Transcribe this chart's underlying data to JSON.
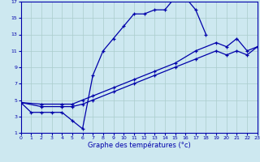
{
  "xlabel": "Graphe des températures (°c)",
  "bg_color": "#cde8f0",
  "line_color": "#0000aa",
  "grid_color": "#aacccc",
  "xlim": [
    0,
    23
  ],
  "ylim": [
    1,
    17
  ],
  "xticks": [
    0,
    1,
    2,
    3,
    4,
    5,
    6,
    7,
    8,
    9,
    10,
    11,
    12,
    13,
    14,
    15,
    16,
    17,
    18,
    19,
    20,
    21,
    22,
    23
  ],
  "yticks": [
    1,
    3,
    5,
    7,
    9,
    11,
    13,
    15,
    17
  ],
  "line1_x": [
    0,
    1,
    2,
    3,
    4,
    5,
    6,
    7,
    8,
    9,
    10,
    11,
    12,
    13,
    14,
    15,
    16,
    17,
    18
  ],
  "line1_y": [
    4.7,
    3.5,
    3.5,
    3.5,
    3.5,
    2.5,
    1.5,
    8.0,
    11.0,
    12.5,
    14.0,
    15.5,
    15.5,
    16.0,
    16.0,
    17.5,
    17.5,
    16.0,
    13.0
  ],
  "line2_x": [
    0,
    2,
    4,
    5,
    6,
    7,
    9,
    11,
    13,
    15,
    17,
    19,
    20,
    21,
    22,
    23
  ],
  "line2_y": [
    4.7,
    4.5,
    4.5,
    4.5,
    5.0,
    5.5,
    6.5,
    7.5,
    8.5,
    9.5,
    11.0,
    12.0,
    11.5,
    12.5,
    11.0,
    11.5
  ],
  "line3_x": [
    0,
    2,
    4,
    5,
    6,
    7,
    9,
    11,
    13,
    15,
    17,
    19,
    20,
    21,
    22,
    23
  ],
  "line3_y": [
    4.7,
    4.2,
    4.2,
    4.2,
    4.5,
    5.0,
    6.0,
    7.0,
    8.0,
    9.0,
    10.0,
    11.0,
    10.5,
    11.0,
    10.5,
    11.5
  ]
}
